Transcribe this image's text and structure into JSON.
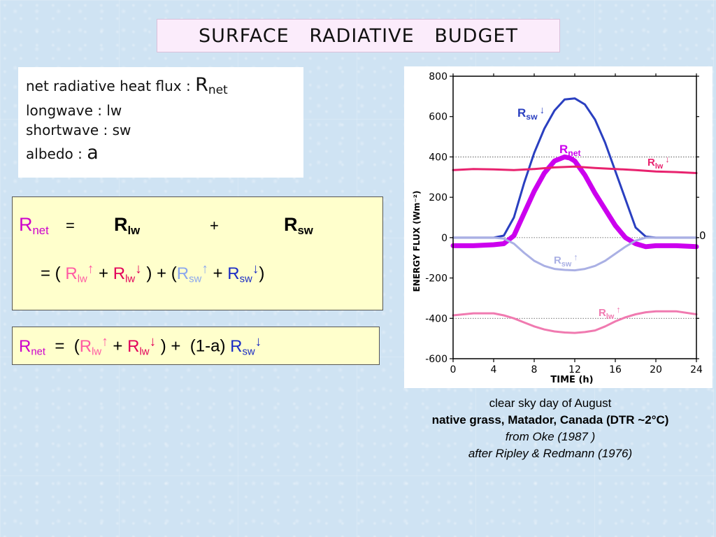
{
  "slide": {
    "title": "SURFACE   RADIATIVE   BUDGET"
  },
  "definitions": {
    "line1_text": "net radiative heat flux",
    "line1_colon": " : ",
    "line1_symbol": "R",
    "line1_sub": "net",
    "line2": "longwave : lw",
    "line3": "shortwave : sw",
    "line4_text": "albedo : ",
    "line4_symbol": "a"
  },
  "equation1": {
    "rnet_R": "R",
    "rnet_sub": "net",
    "equals": "=",
    "rlw_R": "R",
    "rlw_sub": "lw",
    "plus": "+",
    "rsw_R": "R",
    "rsw_sub": "sw",
    "l2_open": "= (",
    "l2_p1_R": "R",
    "l2_p1_sub": "lw",
    "l2_p1_arrow": "↑",
    "l2_plus1": "+",
    "l2_p2_R": "R",
    "l2_p2_sub": "lw",
    "l2_p2_arrow": "↓",
    "l2_mid": ") + (",
    "l2_p3_R": "R",
    "l2_p3_sub": "sw",
    "l2_p3_arrow": "↑",
    "l2_plus2": "+",
    "l2_p4_R": "R",
    "l2_p4_sub": "sw",
    "l2_p4_arrow": "↓",
    "l2_close": ")"
  },
  "equation2": {
    "rnet_R": "R",
    "rnet_sub": "net",
    "equals": "=",
    "open": "(",
    "p1_R": "R",
    "p1_sub": "lw",
    "p1_arrow": "↑",
    "plus1": "+",
    "p2_R": "R",
    "p2_sub": "lw",
    "p2_arrow": "↓",
    "mid": ") +",
    "albedo_term": "(1-a)",
    "p3_R": "R",
    "p3_sub": "sw",
    "p3_arrow": "↓"
  },
  "chart_data": {
    "type": "line",
    "xlabel": "TIME (h)",
    "ylabel": "ENERGY  FLUX (Wm⁻²)",
    "xlim": [
      0,
      24
    ],
    "ylim": [
      -600,
      800
    ],
    "xticks": [
      0,
      4,
      8,
      12,
      16,
      20,
      24
    ],
    "yticks": [
      -600,
      -400,
      -200,
      0,
      200,
      400,
      600,
      800
    ],
    "reference_lines_y": [
      -400,
      0,
      400
    ],
    "right_axis_label": "0",
    "series": [
      {
        "name": "R_sw↓",
        "label_R": "R",
        "label_sub": "sw",
        "label_arrow": "↓",
        "color": "#2a3fc0",
        "x": [
          0,
          4,
          5,
          6,
          7,
          8,
          9,
          10,
          11,
          12,
          13,
          14,
          15,
          16,
          17,
          18,
          19,
          20,
          24
        ],
        "y": [
          0,
          0,
          10,
          100,
          270,
          420,
          540,
          630,
          685,
          690,
          660,
          585,
          470,
          330,
          190,
          50,
          5,
          0,
          0
        ]
      },
      {
        "name": "R_net",
        "label_R": "R",
        "label_sub": "net",
        "label_arrow": "",
        "color": "#cc00ee",
        "x": [
          0,
          2,
          4,
          5,
          6,
          7,
          8,
          9,
          10,
          11,
          11.5,
          12,
          13,
          14,
          15,
          16,
          17,
          18,
          19,
          20,
          22,
          24
        ],
        "y": [
          -40,
          -40,
          -35,
          -30,
          10,
          120,
          230,
          320,
          380,
          400,
          395,
          380,
          310,
          220,
          140,
          60,
          0,
          -30,
          -45,
          -40,
          -40,
          -45
        ]
      },
      {
        "name": "R_lw↓",
        "label_R": "R",
        "label_sub": "lw",
        "label_arrow": "↓",
        "color": "#e8226e",
        "x": [
          0,
          2,
          4,
          6,
          8,
          10,
          12,
          14,
          16,
          18,
          20,
          22,
          24
        ],
        "y": [
          335,
          340,
          338,
          335,
          340,
          348,
          352,
          345,
          340,
          335,
          328,
          325,
          320
        ]
      },
      {
        "name": "R_sw↑",
        "label_R": "R",
        "label_sub": "sw",
        "label_arrow": "↑",
        "color": "#aab0e4",
        "x": [
          0,
          4,
          5,
          6,
          7,
          8,
          9,
          10,
          11,
          12,
          13,
          14,
          15,
          16,
          17,
          18,
          19,
          20,
          24
        ],
        "y": [
          0,
          0,
          -5,
          -30,
          -75,
          -115,
          -140,
          -155,
          -160,
          -162,
          -155,
          -140,
          -115,
          -80,
          -45,
          -15,
          0,
          0,
          0
        ]
      },
      {
        "name": "R_lw↑",
        "label_R": "R",
        "label_sub": "lw",
        "label_arrow": "↑",
        "color": "#f07ab0",
        "x": [
          0,
          2,
          4,
          5,
          6,
          7,
          8,
          9,
          10,
          11,
          12,
          13,
          14,
          15,
          16,
          17,
          18,
          19,
          20,
          22,
          24
        ],
        "y": [
          -385,
          -375,
          -375,
          -385,
          -400,
          -420,
          -440,
          -455,
          -465,
          -470,
          -472,
          -468,
          -460,
          -440,
          -415,
          -395,
          -380,
          -370,
          -365,
          -365,
          -380
        ]
      }
    ]
  },
  "caption": {
    "line1": "clear sky day of August",
    "line2": "native grass, Matador, Canada (DTR ~2°C)",
    "line3": "from Oke (1987 )",
    "line4": "after Ripley & Redmann (1976)"
  }
}
